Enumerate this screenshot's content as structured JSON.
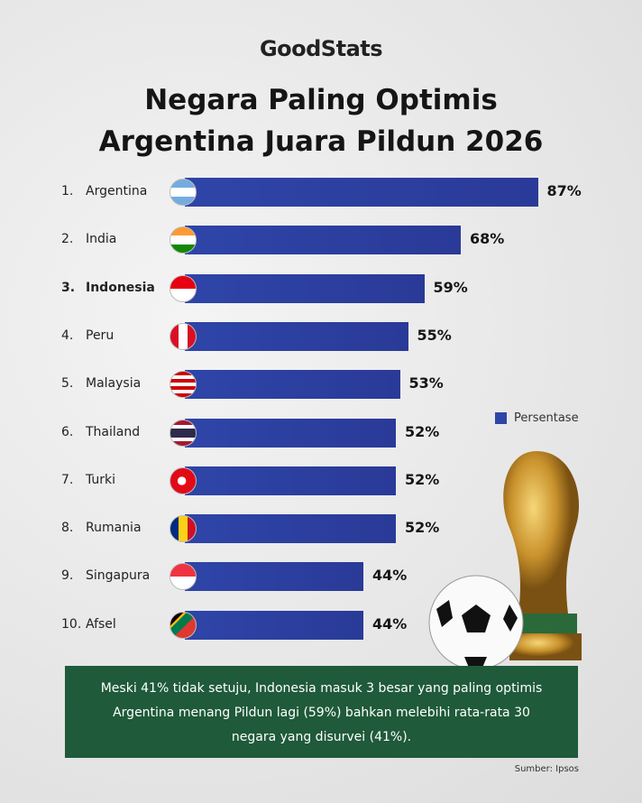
{
  "logo": "GoodStats",
  "chart_data": {
    "type": "bar",
    "orientation": "horizontal",
    "title": "Negara Paling Optimis Argentina Juara Pildun 2026",
    "ranks": [
      "1.",
      "2.",
      "3.",
      "4.",
      "5.",
      "6.",
      "7.",
      "8.",
      "9.",
      "10."
    ],
    "categories": [
      "Argentina",
      "India",
      "Indonesia",
      "Peru",
      "Malaysia",
      "Thailand",
      "Turki",
      "Rumania",
      "Singapura",
      "Afsel"
    ],
    "highlight": "Indonesia",
    "series": [
      {
        "name": "Persentase",
        "color": "#2e45a8",
        "values": [
          87,
          68,
          59,
          55,
          53,
          52,
          52,
          52,
          44,
          44
        ],
        "value_labels": [
          "87%",
          "68%",
          "59%",
          "55%",
          "53%",
          "52%",
          "52%",
          "52%",
          "44%",
          "44%"
        ]
      }
    ],
    "legend": "right"
  },
  "note": "Meski 41% tidak setuju, Indonesia masuk 3 besar yang paling optimis Argentina menang Pildun lagi (59%) bahkan melebihi rata-rata 30 negara yang disurvei (41%).",
  "source": "Sumber: Ipsos"
}
